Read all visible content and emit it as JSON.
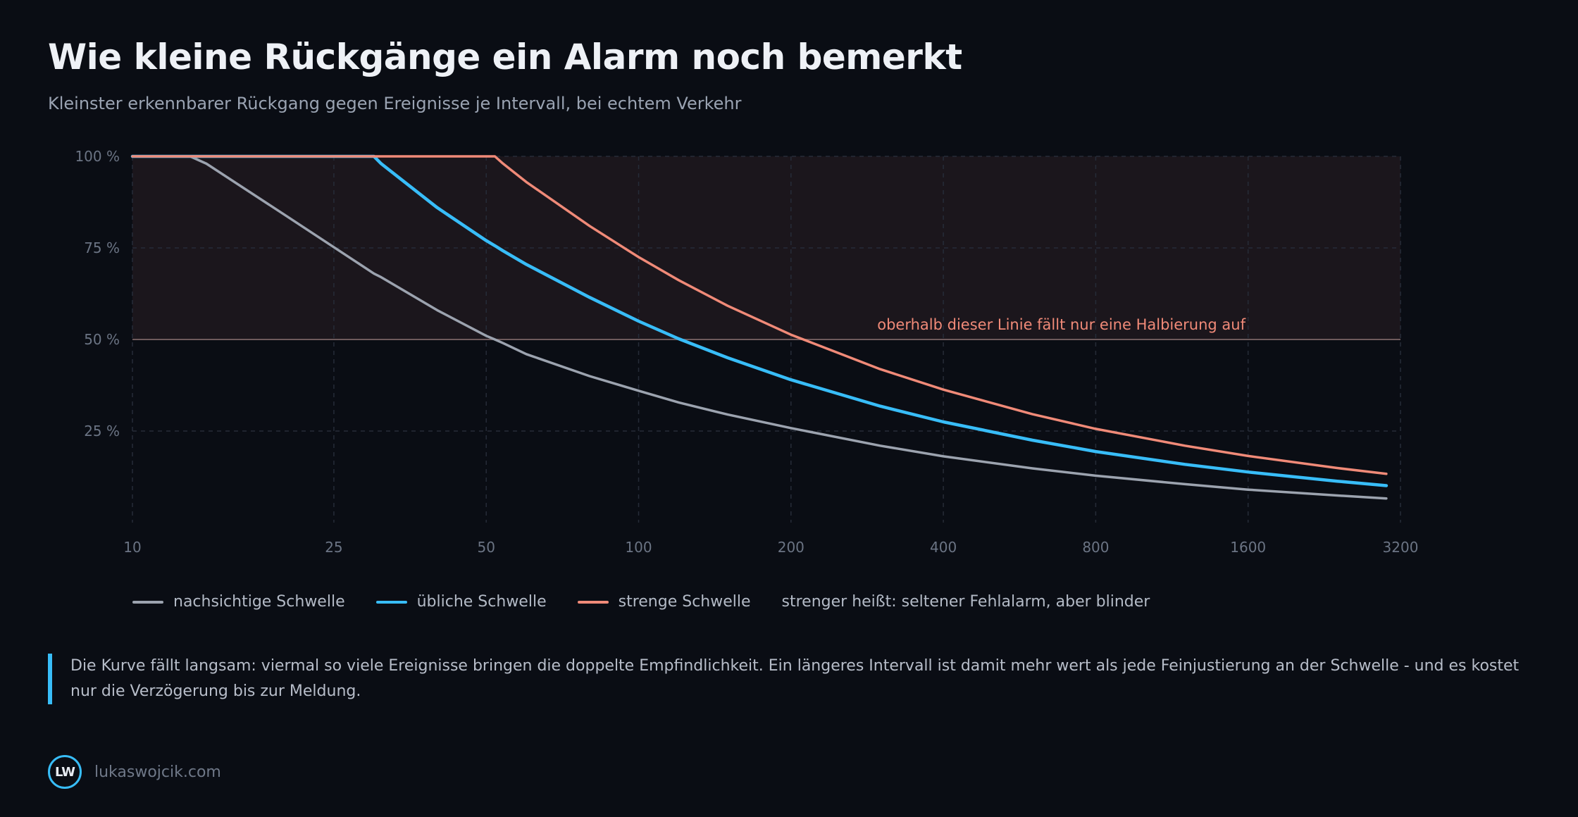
{
  "header": {
    "title": "Wie kleine Rückgänge ein Alarm noch bemerkt",
    "subtitle": "Kleinster erkennbarer Rückgang gegen Ereignisse je Intervall, bei echtem Verkehr"
  },
  "chart_data": {
    "type": "line",
    "x_scale": "log",
    "xlim": [
      10,
      3200
    ],
    "ylim": [
      0,
      100
    ],
    "x_ticks": [
      10,
      25,
      50,
      100,
      200,
      400,
      800,
      1600,
      3200
    ],
    "x_tick_labels": [
      "10",
      "25",
      "50",
      "100",
      "200",
      "400",
      "800",
      "1600",
      "3200"
    ],
    "y_ticks": [
      25,
      50,
      75,
      100
    ],
    "y_tick_labels": [
      "25 %",
      "50 %",
      "75 %",
      "100 %"
    ],
    "grid": true,
    "x": [
      10,
      13,
      14,
      20,
      30,
      31,
      40,
      50,
      52,
      54,
      60,
      80,
      100,
      120,
      150,
      200,
      300,
      400,
      600,
      800,
      1200,
      1600,
      2400,
      3000
    ],
    "series": [
      {
        "name": "nachsichtige Schwelle",
        "color": "#9ca3af",
        "values": [
          100,
          100,
          98,
          84,
          68,
          67,
          58,
          51,
          50,
          49,
          46,
          40,
          36,
          32.8,
          29.5,
          25.8,
          21,
          18.1,
          14.8,
          12.8,
          10.5,
          9,
          7.4,
          6.6
        ]
      },
      {
        "name": "übliche Schwelle",
        "color": "#38bdf8",
        "values": [
          100,
          100,
          100,
          100,
          100,
          98,
          86,
          77,
          75.6,
          74.2,
          70.5,
          61.5,
          55,
          50.2,
          45,
          39,
          31.8,
          27.5,
          22.5,
          19.4,
          15.9,
          13.8,
          11.3,
          10.1
        ]
      },
      {
        "name": "strenge Schwelle",
        "color": "#f08a78",
        "values": [
          100,
          100,
          100,
          100,
          100,
          100,
          100,
          100,
          100,
          98,
          93,
          81,
          72.5,
          66.2,
          59.2,
          51.3,
          41.9,
          36.3,
          29.6,
          25.6,
          21,
          18.2,
          14.9,
          13.3
        ]
      }
    ],
    "threshold": {
      "y": 50,
      "label": "oberhalb dieser Linie fällt nur eine Halbierung auf",
      "color": "#f08a78"
    }
  },
  "legend": {
    "items": [
      {
        "label": "nachsichtige Schwelle",
        "color": "#9ca3af"
      },
      {
        "label": "übliche Schwelle",
        "color": "#38bdf8"
      },
      {
        "label": "strenge Schwelle",
        "color": "#f08a78"
      }
    ],
    "note": "strenger heißt: seltener Fehlalarm, aber blinder"
  },
  "note": {
    "text": "Die Kurve fällt langsam: viermal so viele Ereignisse bringen die doppelte Empfindlichkeit. Ein längeres Intervall ist damit mehr wert als jede Feinjustierung an der Schwelle - und es kostet nur die Verzögerung bis zur Meldung."
  },
  "footer": {
    "logo_text": "LW",
    "site": "lukaswojcik.com"
  }
}
